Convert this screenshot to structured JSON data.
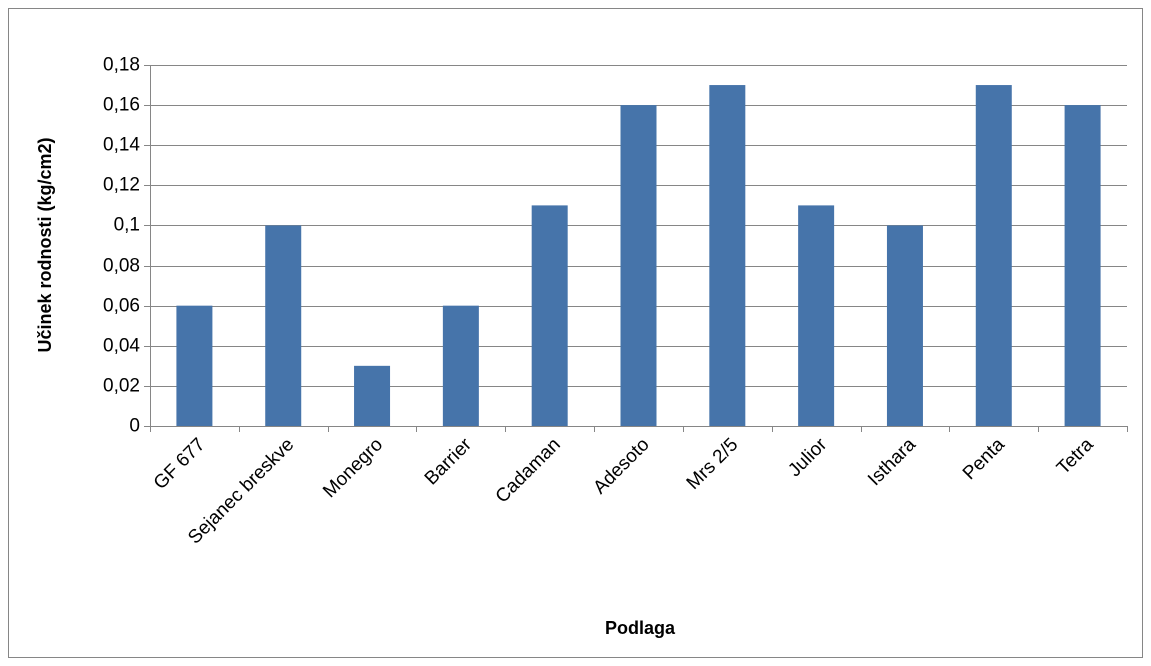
{
  "chart_data": {
    "type": "bar",
    "x_label": "Podlaga",
    "y_label": "Učinek rodnosti (kg/cm2)",
    "categories": [
      "GF 677",
      "Sejanec breskve",
      "Monegro",
      "Barrier",
      "Cadaman",
      "Adesoto",
      "Mrs 2/5",
      "Julior",
      "Isthara",
      "Penta",
      "Tetra"
    ],
    "values": [
      0.06,
      0.1,
      0.03,
      0.06,
      0.11,
      0.16,
      0.17,
      0.11,
      0.1,
      0.17,
      0.16
    ],
    "color": "#4674aa",
    "ylim": [
      0,
      0.18
    ],
    "yticks": [
      0,
      {
        "value": 0.02,
        "label": "0,02"
      },
      {
        "value": 0.04,
        "label": "0,04"
      },
      {
        "value": 0.06,
        "label": "0,06"
      },
      {
        "value": 0.08,
        "label": "0,08"
      },
      {
        "value": 0.1,
        "label": "0,1"
      },
      {
        "value": 0.12,
        "label": "0,12"
      },
      {
        "value": 0.14,
        "label": "0,14"
      },
      {
        "value": 0.16,
        "label": "0,16"
      },
      {
        "value": 0.18,
        "label": "0,18"
      }
    ],
    "grid": true
  }
}
